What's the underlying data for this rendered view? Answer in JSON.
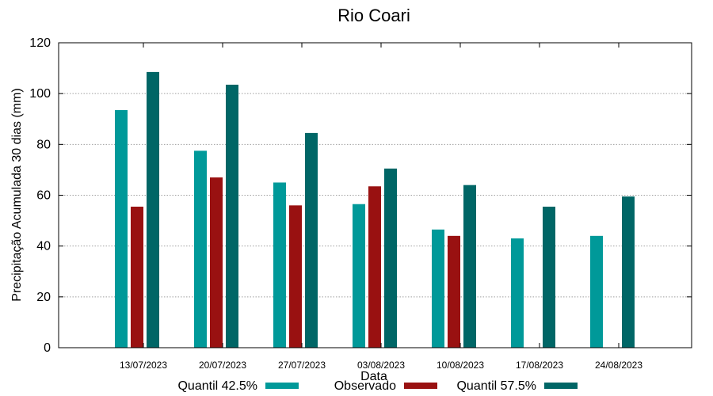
{
  "chart_data": {
    "type": "bar",
    "title": "Rio Coari",
    "xlabel": "Data",
    "ylabel": "Precipitação Acumulada 30 dias (mm)",
    "ylim": [
      0,
      120
    ],
    "yticks": [
      0,
      20,
      40,
      60,
      80,
      100,
      120
    ],
    "grid": true,
    "legend_position": "bottom",
    "categories": [
      "13/07/2023",
      "20/07/2023",
      "27/07/2023",
      "03/08/2023",
      "10/08/2023",
      "17/08/2023",
      "24/08/2023"
    ],
    "series": [
      {
        "name": "Quantil 42.5%",
        "color": "#009999",
        "values": [
          93.5,
          77.5,
          65,
          56.5,
          46.5,
          43,
          44
        ]
      },
      {
        "name": "Observado",
        "color": "#991111",
        "values": [
          55.5,
          67,
          56,
          63.5,
          44,
          null,
          null
        ]
      },
      {
        "name": "Quantil 57.5%",
        "color": "#006666",
        "values": [
          108.5,
          103.5,
          84.5,
          70.5,
          64,
          55.5,
          59.5
        ]
      }
    ]
  }
}
